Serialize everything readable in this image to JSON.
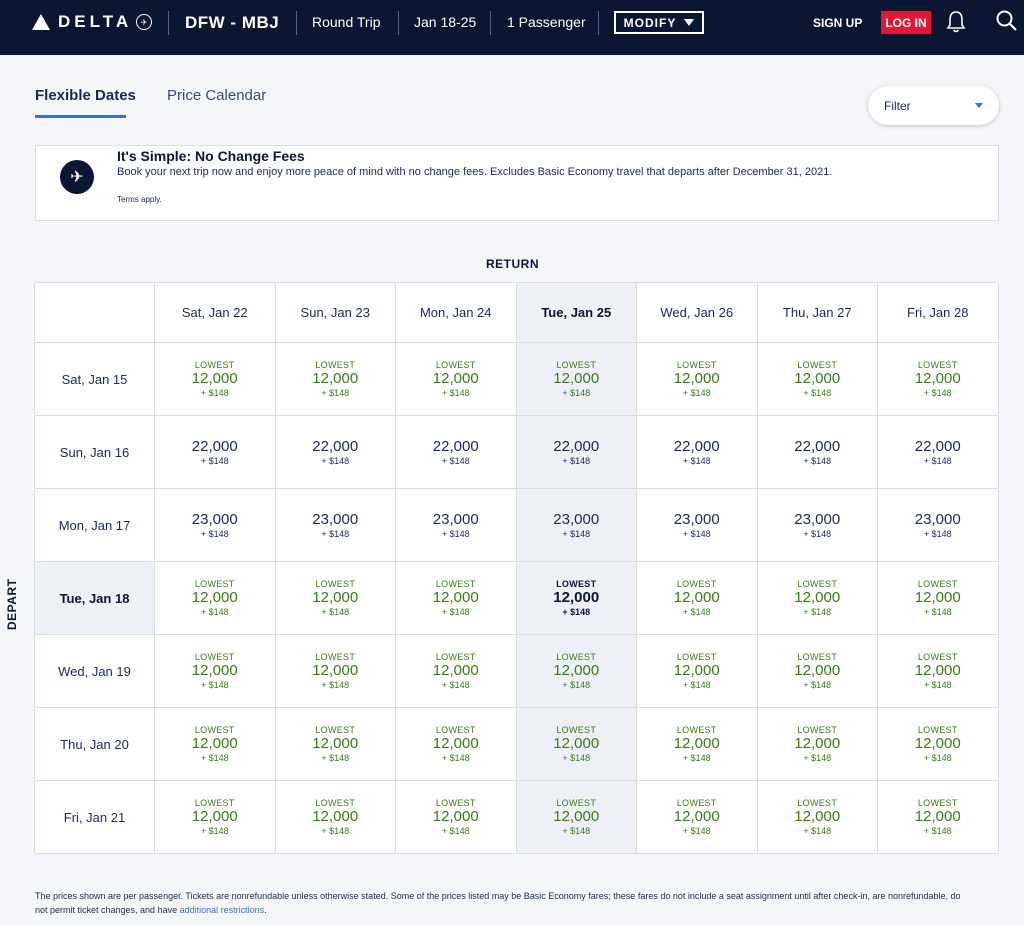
{
  "header": {
    "logo_text": "DELTA",
    "route": "DFW - MBJ",
    "trip_type": "Round Trip",
    "dates": "Jan 18-25",
    "passengers": "1 Passenger",
    "modify_label": "MODIFY",
    "signup_label": "SIGN UP",
    "login_label": "LOG IN"
  },
  "tabs": [
    {
      "label": "Flexible Dates",
      "active": true
    },
    {
      "label": "Price Calendar",
      "active": false
    }
  ],
  "filter": {
    "label": "Filter"
  },
  "banner": {
    "title": "It's Simple: No Change Fees",
    "body": "Book your next trip now and enjoy more peace of mind with no change fees. Excludes Basic Economy travel that departs after December 31, 2021.",
    "terms": "Terms apply."
  },
  "grid": {
    "return_label": "RETURN",
    "depart_label": "DEPART",
    "return_dates": [
      "Sat, Jan 22",
      "Sun, Jan 23",
      "Mon, Jan 24",
      "Tue, Jan 25",
      "Wed, Jan 26",
      "Thu, Jan 27",
      "Fri, Jan 28"
    ],
    "rows": [
      {
        "depart": "Sat, Jan 15",
        "cells": [
          {
            "lowest": "LOWEST",
            "miles": "12,000",
            "fee": "+ $148"
          },
          {
            "lowest": "LOWEST",
            "miles": "12,000",
            "fee": "+ $148"
          },
          {
            "lowest": "LOWEST",
            "miles": "12,000",
            "fee": "+ $148"
          },
          {
            "lowest": "LOWEST",
            "miles": "12,000",
            "fee": "+ $148"
          },
          {
            "lowest": "LOWEST",
            "miles": "12,000",
            "fee": "+ $148"
          },
          {
            "lowest": "LOWEST",
            "miles": "12,000",
            "fee": "+ $148"
          },
          {
            "lowest": "LOWEST",
            "miles": "12,000",
            "fee": "+ $148"
          }
        ]
      },
      {
        "depart": "Sun, Jan 16",
        "cells": [
          {
            "lowest": "",
            "miles": "22,000",
            "fee": "+ $148"
          },
          {
            "lowest": "",
            "miles": "22,000",
            "fee": "+ $148"
          },
          {
            "lowest": "",
            "miles": "22,000",
            "fee": "+ $148"
          },
          {
            "lowest": "",
            "miles": "22,000",
            "fee": "+ $148"
          },
          {
            "lowest": "",
            "miles": "22,000",
            "fee": "+ $148"
          },
          {
            "lowest": "",
            "miles": "22,000",
            "fee": "+ $148"
          },
          {
            "lowest": "",
            "miles": "22,000",
            "fee": "+ $148"
          }
        ]
      },
      {
        "depart": "Mon, Jan 17",
        "cells": [
          {
            "lowest": "",
            "miles": "23,000",
            "fee": "+ $148"
          },
          {
            "lowest": "",
            "miles": "23,000",
            "fee": "+ $148"
          },
          {
            "lowest": "",
            "miles": "23,000",
            "fee": "+ $148"
          },
          {
            "lowest": "",
            "miles": "23,000",
            "fee": "+ $148"
          },
          {
            "lowest": "",
            "miles": "23,000",
            "fee": "+ $148"
          },
          {
            "lowest": "",
            "miles": "23,000",
            "fee": "+ $148"
          },
          {
            "lowest": "",
            "miles": "23,000",
            "fee": "+ $148"
          }
        ]
      },
      {
        "depart": "Tue, Jan 18",
        "cells": [
          {
            "lowest": "LOWEST",
            "miles": "12,000",
            "fee": "+ $148"
          },
          {
            "lowest": "LOWEST",
            "miles": "12,000",
            "fee": "+ $148"
          },
          {
            "lowest": "LOWEST",
            "miles": "12,000",
            "fee": "+ $148"
          },
          {
            "lowest": "LOWEST",
            "miles": "12,000",
            "fee": "+ $148"
          },
          {
            "lowest": "LOWEST",
            "miles": "12,000",
            "fee": "+ $148"
          },
          {
            "lowest": "LOWEST",
            "miles": "12,000",
            "fee": "+ $148"
          },
          {
            "lowest": "LOWEST",
            "miles": "12,000",
            "fee": "+ $148"
          }
        ]
      },
      {
        "depart": "Wed, Jan 19",
        "cells": [
          {
            "lowest": "LOWEST",
            "miles": "12,000",
            "fee": "+ $148"
          },
          {
            "lowest": "LOWEST",
            "miles": "12,000",
            "fee": "+ $148"
          },
          {
            "lowest": "LOWEST",
            "miles": "12,000",
            "fee": "+ $148"
          },
          {
            "lowest": "LOWEST",
            "miles": "12,000",
            "fee": "+ $148"
          },
          {
            "lowest": "LOWEST",
            "miles": "12,000",
            "fee": "+ $148"
          },
          {
            "lowest": "LOWEST",
            "miles": "12,000",
            "fee": "+ $148"
          },
          {
            "lowest": "LOWEST",
            "miles": "12,000",
            "fee": "+ $148"
          }
        ]
      },
      {
        "depart": "Thu, Jan 20",
        "cells": [
          {
            "lowest": "LOWEST",
            "miles": "12,000",
            "fee": "+ $148"
          },
          {
            "lowest": "LOWEST",
            "miles": "12,000",
            "fee": "+ $148"
          },
          {
            "lowest": "LOWEST",
            "miles": "12,000",
            "fee": "+ $148"
          },
          {
            "lowest": "LOWEST",
            "miles": "12,000",
            "fee": "+ $148"
          },
          {
            "lowest": "LOWEST",
            "miles": "12,000",
            "fee": "+ $148"
          },
          {
            "lowest": "LOWEST",
            "miles": "12,000",
            "fee": "+ $148"
          },
          {
            "lowest": "LOWEST",
            "miles": "12,000",
            "fee": "+ $148"
          }
        ]
      },
      {
        "depart": "Fri, Jan 21",
        "cells": [
          {
            "lowest": "LOWEST",
            "miles": "12,000",
            "fee": "+ $148"
          },
          {
            "lowest": "LOWEST",
            "miles": "12,000",
            "fee": "+ $148"
          },
          {
            "lowest": "LOWEST",
            "miles": "12,000",
            "fee": "+ $148"
          },
          {
            "lowest": "LOWEST",
            "miles": "12,000",
            "fee": "+ $148"
          },
          {
            "lowest": "LOWEST",
            "miles": "12,000",
            "fee": "+ $148"
          },
          {
            "lowest": "LOWEST",
            "miles": "12,000",
            "fee": "+ $148"
          },
          {
            "lowest": "LOWEST",
            "miles": "12,000",
            "fee": "+ $148"
          }
        ]
      }
    ],
    "selected_depart_index": 3,
    "selected_return_index": 3
  },
  "footer": {
    "text": "The prices shown are per passenger. Tickets are nonrefundable unless otherwise stated. Some of the prices listed may be Basic Economy fares; these fares do not include a seat assignment until after check-in, are nonrefundable, do not permit ticket changes, and have ",
    "link": "additional restrictions",
    "end": "."
  },
  "colors": {
    "header_bg": "#0b1633",
    "login_red": "#e01933",
    "lowest_green": "#3a7b17",
    "highlight": "#edf0f6",
    "accent_blue": "#3b6fd4"
  },
  "icons": [
    "delta-widget-icon",
    "globe-icon",
    "caret-down-icon",
    "bell-icon",
    "search-icon",
    "no-change-fees-icon"
  ]
}
